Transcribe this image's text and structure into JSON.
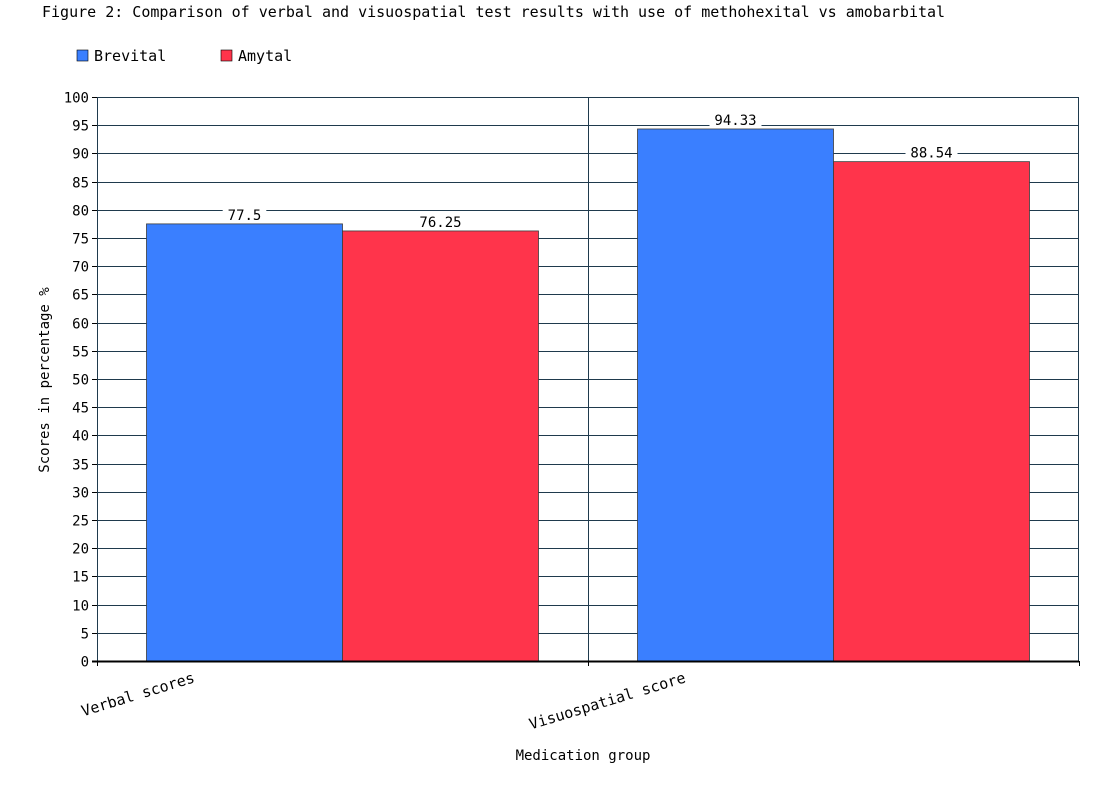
{
  "chart_data": {
    "type": "bar",
    "title": "Figure 2: Comparison of verbal and visuospatial test results with use of methohexital vs amobarbital",
    "xlabel": "Medication group",
    "ylabel": "Scores in percentage %",
    "ylim": [
      0,
      100
    ],
    "ytick_step": 5,
    "grid": true,
    "legend_position": "top-left",
    "categories": [
      "Verbal scores",
      "Visuospatial score"
    ],
    "series": [
      {
        "name": "Brevital",
        "color": "#3a7fff",
        "values": [
          77.5,
          94.33
        ],
        "labels": [
          "77.5",
          "94.33"
        ]
      },
      {
        "name": "Amytal",
        "color": "#ff344b",
        "values": [
          76.25,
          88.54
        ],
        "labels": [
          "76.25",
          "88.54"
        ]
      }
    ]
  }
}
